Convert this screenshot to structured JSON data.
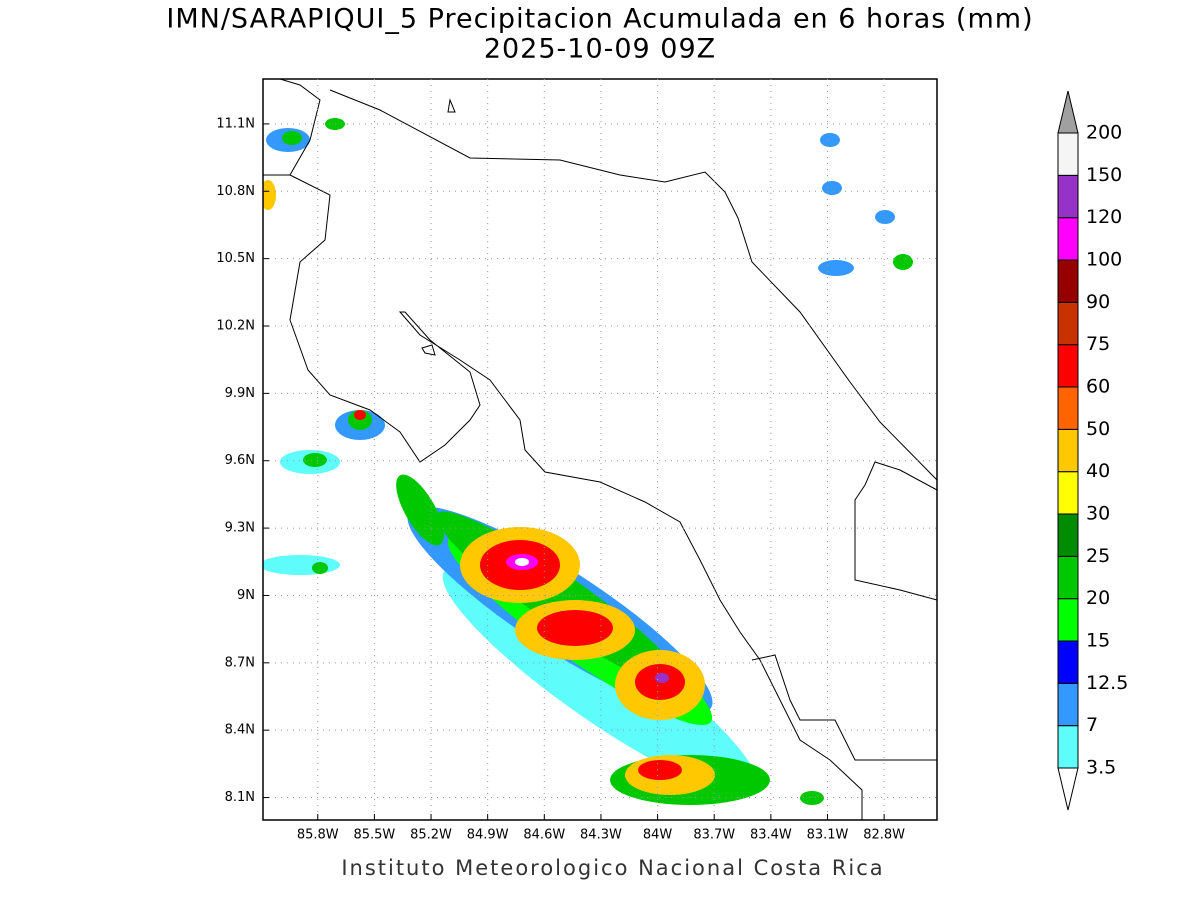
{
  "title": "IMN/SARAPIQUI_5 Precipitacion Acumulada en 6 horas (mm)",
  "subtitle": "2025-10-09 09Z",
  "footer": "Instituto Meteorologico Nacional Costa Rica",
  "map": {
    "xlim": [
      -86.09,
      -82.52
    ],
    "ylim": [
      8.0,
      11.3
    ],
    "xticks": [
      {
        "value": -85.8,
        "label": "85.8W"
      },
      {
        "value": -85.5,
        "label": "85.5W"
      },
      {
        "value": -85.2,
        "label": "85.2W"
      },
      {
        "value": -84.9,
        "label": "84.9W"
      },
      {
        "value": -84.6,
        "label": "84.6W"
      },
      {
        "value": -84.3,
        "label": "84.3W"
      },
      {
        "value": -84.0,
        "label": "84W"
      },
      {
        "value": -83.7,
        "label": "83.7W"
      },
      {
        "value": -83.4,
        "label": "83.4W"
      },
      {
        "value": -83.1,
        "label": "83.1W"
      },
      {
        "value": -82.8,
        "label": "82.8W"
      }
    ],
    "yticks": [
      {
        "value": 8.1,
        "label": "8.1N"
      },
      {
        "value": 8.4,
        "label": "8.4N"
      },
      {
        "value": 8.7,
        "label": "8.7N"
      },
      {
        "value": 9.0,
        "label": "9N"
      },
      {
        "value": 9.3,
        "label": "9.3N"
      },
      {
        "value": 9.6,
        "label": "9.6N"
      },
      {
        "value": 9.9,
        "label": "9.9N"
      },
      {
        "value": 10.2,
        "label": "10.2N"
      },
      {
        "value": 10.5,
        "label": "10.5N"
      },
      {
        "value": 10.8,
        "label": "10.8N"
      },
      {
        "value": 11.1,
        "label": "11.1N"
      }
    ]
  },
  "colorbar": {
    "levels": [
      3.5,
      7,
      12.5,
      15,
      20,
      25,
      30,
      40,
      50,
      60,
      75,
      90,
      100,
      120,
      150,
      200
    ],
    "colors": [
      "#5ffcfc",
      "#3399ff",
      "#0000ff",
      "#00ff00",
      "#00c800",
      "#008c00",
      "#ffff00",
      "#ffc800",
      "#ff6400",
      "#ff0000",
      "#c83200",
      "#960000",
      "#ff00ff",
      "#9632c8",
      "#f5f5f5"
    ],
    "under_color": "#ffffff",
    "over_color": "#a0a0a0"
  }
}
